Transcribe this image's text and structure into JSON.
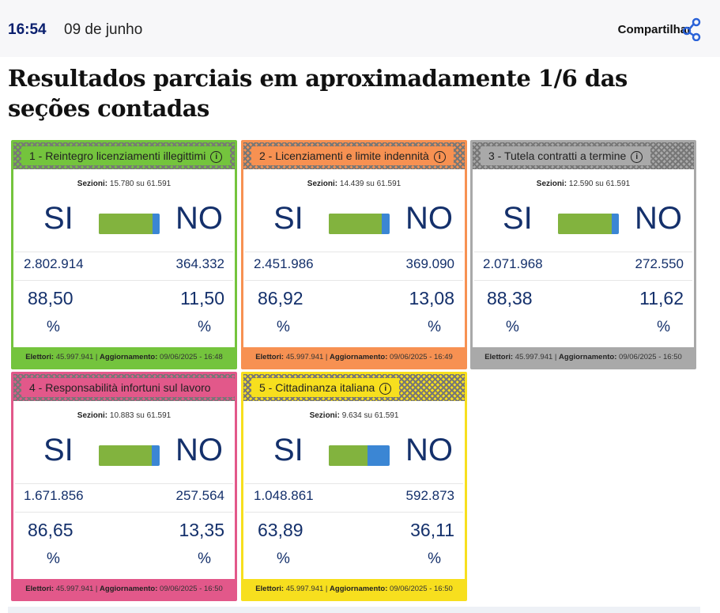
{
  "header": {
    "time": "16:54",
    "date": "09 de junho",
    "share_label": "Compartilhar"
  },
  "title": "Resultados parciais em aproximadamente 1/6 das seções contadas",
  "labels": {
    "sezioni": "Sezioni:",
    "su": "su",
    "elettori": "Elettori:",
    "aggiornamento": "Aggiornamento:",
    "si": "SI",
    "no": "NO",
    "percent": "%"
  },
  "cards": [
    {
      "title": "1 - Reintegro licenziamenti illegittimi",
      "color": "#74c43d",
      "sezioni": "15.780",
      "total": "61.591",
      "si_votes": "2.802.914",
      "no_votes": "364.332",
      "si_pct": "88,50",
      "no_pct": "11,50",
      "si_share": 88.5,
      "elettori": "45.997.941",
      "update": "09/06/2025 - 16:48"
    },
    {
      "title": "2 - Licenziamenti e limite indennità",
      "color": "#f79152",
      "sezioni": "14.439",
      "total": "61.591",
      "si_votes": "2.451.986",
      "no_votes": "369.090",
      "si_pct": "86,92",
      "no_pct": "13,08",
      "si_share": 86.92,
      "elettori": "45.997.941",
      "update": "09/06/2025 - 16:49"
    },
    {
      "title": "3 - Tutela contratti a termine",
      "color": "#a9a9a9",
      "sezioni": "12.590",
      "total": "61.591",
      "si_votes": "2.071.968",
      "no_votes": "272.550",
      "si_pct": "88,38",
      "no_pct": "11,62",
      "si_share": 88.38,
      "elettori": "45.997.941",
      "update": "09/06/2025 - 16:50"
    },
    {
      "title": "4 - Responsabilità infortuni sul lavoro",
      "color": "#e2588a",
      "sezioni": "10.883",
      "total": "61.591",
      "si_votes": "1.671.856",
      "no_votes": "257.564",
      "si_pct": "86,65",
      "no_pct": "13,35",
      "si_share": 86.65,
      "elettori": "45.997.941",
      "update": "09/06/2025 - 16:50"
    },
    {
      "title": "5 - Cittadinanza italiana",
      "color": "#f7df1e",
      "sezioni": "9.634",
      "total": "61.591",
      "si_votes": "1.048.861",
      "no_votes": "592.873",
      "si_pct": "63,89",
      "no_pct": "36,11",
      "si_share": 63.89,
      "elettori": "45.997.941",
      "update": "09/06/2025 - 16:50"
    }
  ]
}
